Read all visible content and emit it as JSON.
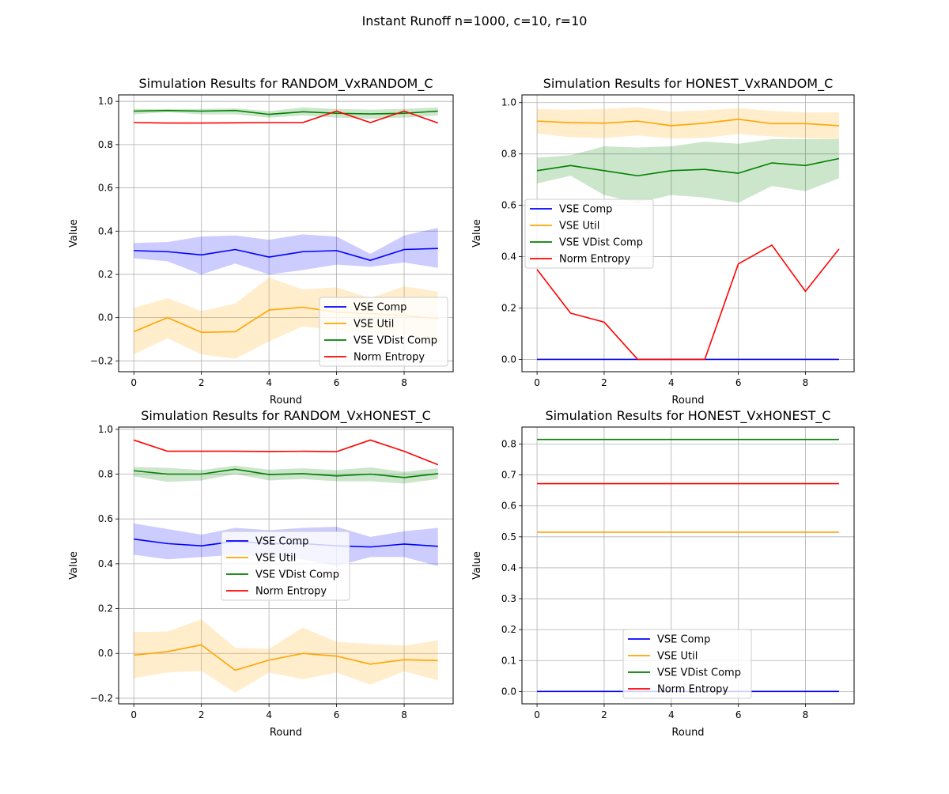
{
  "figure": {
    "suptitle": "Instant Runoff n=1000, c=10, r=10"
  },
  "colors": {
    "VSE Comp": "#0000ff",
    "VSE Util": "#ffa500",
    "VSE VDist Comp": "#008000",
    "Norm Entropy": "#ff0000"
  },
  "chart_data": [
    {
      "type": "line",
      "title": "Simulation Results for RANDOM_VxRANDOM_C",
      "xlabel": "Round",
      "ylabel": "Value",
      "xlim": [
        -0.45,
        9.45
      ],
      "ylim": [
        -0.25,
        1.03
      ],
      "xticks": [
        0,
        2,
        4,
        6,
        8
      ],
      "yticks": [
        -0.2,
        0.0,
        0.2,
        0.4,
        0.6,
        0.8,
        1.0
      ],
      "ytick_labels": [
        "−0.2",
        "0.0",
        "0.2",
        "0.4",
        "0.6",
        "0.8",
        "1.0"
      ],
      "grid": true,
      "legend_position": "lower right",
      "x": [
        0,
        1,
        2,
        3,
        4,
        5,
        6,
        7,
        8,
        9
      ],
      "series": [
        {
          "name": "VSE Comp",
          "values": [
            0.31,
            0.305,
            0.29,
            0.315,
            0.28,
            0.305,
            0.31,
            0.265,
            0.315,
            0.32
          ],
          "lower": [
            0.275,
            0.26,
            0.2,
            0.25,
            0.2,
            0.22,
            0.245,
            0.235,
            0.255,
            0.23
          ],
          "upper": [
            0.345,
            0.35,
            0.375,
            0.38,
            0.36,
            0.385,
            0.375,
            0.295,
            0.38,
            0.415
          ]
        },
        {
          "name": "VSE Util",
          "values": [
            -0.065,
            0.0,
            -0.068,
            -0.065,
            0.035,
            0.048,
            0.025,
            0.018,
            0.01,
            -0.005
          ],
          "lower": [
            -0.17,
            -0.095,
            -0.17,
            -0.19,
            -0.11,
            -0.04,
            -0.06,
            -0.075,
            -0.08,
            -0.13
          ],
          "upper": [
            0.045,
            0.09,
            0.03,
            0.065,
            0.185,
            0.13,
            0.14,
            0.09,
            0.145,
            0.12
          ]
        },
        {
          "name": "VSE VDist Comp",
          "values": [
            0.955,
            0.958,
            0.955,
            0.958,
            0.94,
            0.952,
            0.945,
            0.942,
            0.945,
            0.955
          ],
          "lower": [
            0.94,
            0.95,
            0.94,
            0.94,
            0.925,
            0.935,
            0.925,
            0.92,
            0.925,
            0.935
          ],
          "upper": [
            0.965,
            0.965,
            0.965,
            0.968,
            0.955,
            0.972,
            0.965,
            0.962,
            0.965,
            0.972
          ]
        },
        {
          "name": "Norm Entropy",
          "values": [
            0.902,
            0.9,
            0.9,
            0.901,
            0.902,
            0.902,
            0.955,
            0.902,
            0.955,
            0.9
          ]
        }
      ]
    },
    {
      "type": "line",
      "title": "Simulation Results for HONEST_VxRANDOM_C",
      "xlabel": "Round",
      "ylabel": "Value",
      "xlim": [
        -0.45,
        9.45
      ],
      "ylim": [
        -0.048,
        1.03
      ],
      "xticks": [
        0,
        2,
        4,
        6,
        8
      ],
      "yticks": [
        0.0,
        0.2,
        0.4,
        0.6,
        0.8,
        1.0
      ],
      "ytick_labels": [
        "0.0",
        "0.2",
        "0.4",
        "0.6",
        "0.8",
        "1.0"
      ],
      "grid": true,
      "legend_position": "center left",
      "x": [
        0,
        1,
        2,
        3,
        4,
        5,
        6,
        7,
        8,
        9
      ],
      "series": [
        {
          "name": "VSE Comp",
          "values": [
            0,
            0,
            0,
            0,
            0,
            0,
            0,
            0,
            0,
            0
          ]
        },
        {
          "name": "VSE Util",
          "values": [
            0.928,
            0.922,
            0.92,
            0.928,
            0.91,
            0.92,
            0.935,
            0.918,
            0.918,
            0.91
          ],
          "lower": [
            0.88,
            0.865,
            0.862,
            0.872,
            0.86,
            0.863,
            0.878,
            0.868,
            0.862,
            0.858
          ],
          "upper": [
            0.975,
            0.972,
            0.975,
            0.982,
            0.965,
            0.97,
            0.978,
            0.968,
            0.962,
            0.962
          ]
        },
        {
          "name": "VSE VDist Comp",
          "values": [
            0.735,
            0.755,
            0.735,
            0.715,
            0.735,
            0.74,
            0.725,
            0.765,
            0.755,
            0.782
          ],
          "lower": [
            0.685,
            0.715,
            0.64,
            0.61,
            0.64,
            0.63,
            0.61,
            0.675,
            0.655,
            0.705
          ],
          "upper": [
            0.785,
            0.795,
            0.83,
            0.825,
            0.83,
            0.848,
            0.84,
            0.858,
            0.858,
            0.858
          ]
        },
        {
          "name": "Norm Entropy",
          "values": [
            0.35,
            0.18,
            0.145,
            0.0,
            0.0,
            0.0,
            0.372,
            0.445,
            0.265,
            0.43
          ]
        }
      ]
    },
    {
      "type": "line",
      "title": "Simulation Results for RANDOM_VxHONEST_C",
      "xlabel": "Round",
      "ylabel": "Value",
      "xlim": [
        -0.45,
        9.45
      ],
      "ylim": [
        -0.225,
        1.01
      ],
      "xticks": [
        0,
        2,
        4,
        6,
        8
      ],
      "yticks": [
        -0.2,
        0.0,
        0.2,
        0.4,
        0.6,
        0.8,
        1.0
      ],
      "ytick_labels": [
        "−0.2",
        "0.0",
        "0.2",
        "0.4",
        "0.6",
        "0.8",
        "1.0"
      ],
      "grid": true,
      "legend_position": "center",
      "x": [
        0,
        1,
        2,
        3,
        4,
        5,
        6,
        7,
        8,
        9
      ],
      "series": [
        {
          "name": "VSE Comp",
          "values": [
            0.51,
            0.49,
            0.48,
            0.5,
            0.49,
            0.49,
            0.48,
            0.475,
            0.488,
            0.478
          ],
          "lower": [
            0.44,
            0.42,
            0.43,
            0.44,
            0.43,
            0.42,
            0.39,
            0.43,
            0.43,
            0.39
          ],
          "upper": [
            0.58,
            0.555,
            0.53,
            0.56,
            0.55,
            0.56,
            0.565,
            0.52,
            0.545,
            0.56
          ]
        },
        {
          "name": "VSE Util",
          "values": [
            -0.008,
            0.008,
            0.038,
            -0.075,
            -0.03,
            0.0,
            -0.012,
            -0.048,
            -0.028,
            -0.032
          ],
          "lower": [
            -0.11,
            -0.085,
            -0.078,
            -0.175,
            -0.085,
            -0.115,
            -0.085,
            -0.14,
            -0.08,
            -0.12
          ],
          "upper": [
            0.095,
            0.098,
            0.152,
            0.025,
            0.02,
            0.115,
            0.052,
            0.042,
            0.035,
            0.058
          ]
        },
        {
          "name": "VSE VDist Comp",
          "values": [
            0.815,
            0.8,
            0.8,
            0.822,
            0.798,
            0.802,
            0.792,
            0.8,
            0.785,
            0.802
          ],
          "lower": [
            0.79,
            0.765,
            0.772,
            0.8,
            0.772,
            0.778,
            0.768,
            0.768,
            0.758,
            0.778
          ],
          "upper": [
            0.832,
            0.828,
            0.818,
            0.838,
            0.82,
            0.826,
            0.818,
            0.83,
            0.81,
            0.826
          ]
        },
        {
          "name": "Norm Entropy",
          "values": [
            0.952,
            0.902,
            0.902,
            0.902,
            0.901,
            0.902,
            0.9,
            0.952,
            0.902,
            0.842
          ]
        }
      ]
    },
    {
      "type": "line",
      "title": "Simulation Results for HONEST_VxHONEST_C",
      "xlabel": "Round",
      "ylabel": "Value",
      "xlim": [
        -0.45,
        9.45
      ],
      "ylim": [
        -0.04,
        0.855
      ],
      "xticks": [
        0,
        2,
        4,
        6,
        8
      ],
      "yticks": [
        0.0,
        0.1,
        0.2,
        0.3,
        0.4,
        0.5,
        0.6,
        0.7,
        0.8
      ],
      "ytick_labels": [
        "0.0",
        "0.1",
        "0.2",
        "0.3",
        "0.4",
        "0.5",
        "0.6",
        "0.7",
        "0.8"
      ],
      "grid": true,
      "legend_position": "lower center",
      "x": [
        0,
        1,
        2,
        3,
        4,
        5,
        6,
        7,
        8,
        9
      ],
      "series": [
        {
          "name": "VSE Comp",
          "values": [
            0,
            0,
            0,
            0,
            0,
            0,
            0,
            0,
            0,
            0
          ]
        },
        {
          "name": "VSE Util",
          "values": [
            0.515,
            0.515,
            0.515,
            0.515,
            0.515,
            0.515,
            0.515,
            0.515,
            0.515,
            0.515
          ]
        },
        {
          "name": "VSE VDist Comp",
          "values": [
            0.815,
            0.815,
            0.815,
            0.815,
            0.815,
            0.815,
            0.815,
            0.815,
            0.815,
            0.815
          ]
        },
        {
          "name": "Norm Entropy",
          "values": [
            0.672,
            0.672,
            0.672,
            0.672,
            0.672,
            0.672,
            0.672,
            0.672,
            0.672,
            0.672
          ]
        }
      ]
    }
  ]
}
